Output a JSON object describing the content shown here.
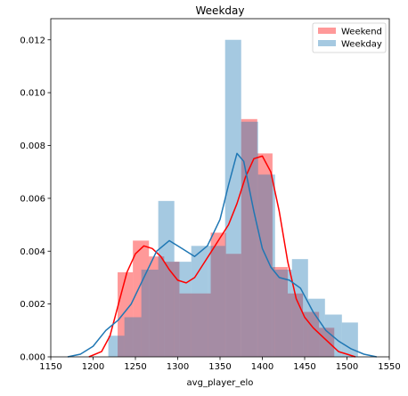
{
  "chart_data": {
    "type": "histogram-kde",
    "title": "Weekday",
    "xlabel": "avg_player_elo",
    "ylabel": "",
    "xlim": [
      1150,
      1550
    ],
    "ylim": [
      0,
      0.0128
    ],
    "xticks": [
      1150,
      1200,
      1250,
      1300,
      1350,
      1400,
      1450,
      1500,
      1550
    ],
    "yticks": [
      0.0,
      0.002,
      0.004,
      0.006,
      0.008,
      0.01,
      0.012
    ],
    "ytick_labels": [
      "0.000",
      "0.002",
      "0.004",
      "0.006",
      "0.008",
      "0.010",
      "0.012"
    ],
    "grid": false,
    "legend_position": "top-right",
    "series": [
      {
        "name": "Weekend",
        "color": "#ff0000",
        "hist_alpha": 0.4,
        "bins": [
          [
            1229,
            1247,
            0.0032
          ],
          [
            1247,
            1266,
            0.0044
          ],
          [
            1266,
            1284,
            0.0038
          ],
          [
            1284,
            1302,
            0.0036
          ],
          [
            1302,
            1320,
            0.0024
          ],
          [
            1320,
            1339,
            0.0024
          ],
          [
            1339,
            1357,
            0.0047
          ],
          [
            1357,
            1375,
            0.0039
          ],
          [
            1375,
            1394,
            0.009
          ],
          [
            1394,
            1412,
            0.0077
          ],
          [
            1412,
            1430,
            0.0034
          ],
          [
            1430,
            1448,
            0.0024
          ],
          [
            1448,
            1467,
            0.0017
          ],
          [
            1467,
            1485,
            0.0011
          ]
        ],
        "kde": [
          [
            1195,
            0.0
          ],
          [
            1210,
            0.0002
          ],
          [
            1220,
            0.0008
          ],
          [
            1230,
            0.002
          ],
          [
            1240,
            0.0032
          ],
          [
            1250,
            0.0039
          ],
          [
            1260,
            0.0042
          ],
          [
            1270,
            0.0041
          ],
          [
            1280,
            0.0038
          ],
          [
            1290,
            0.0033
          ],
          [
            1300,
            0.0029
          ],
          [
            1310,
            0.0028
          ],
          [
            1320,
            0.003
          ],
          [
            1330,
            0.0035
          ],
          [
            1340,
            0.004
          ],
          [
            1350,
            0.0045
          ],
          [
            1360,
            0.005
          ],
          [
            1370,
            0.0058
          ],
          [
            1380,
            0.0068
          ],
          [
            1390,
            0.0075
          ],
          [
            1400,
            0.0076
          ],
          [
            1410,
            0.007
          ],
          [
            1420,
            0.0055
          ],
          [
            1430,
            0.0036
          ],
          [
            1440,
            0.0022
          ],
          [
            1450,
            0.0015
          ],
          [
            1460,
            0.0011
          ],
          [
            1470,
            0.0008
          ],
          [
            1480,
            0.0005
          ],
          [
            1490,
            0.0002
          ],
          [
            1500,
            0.0001
          ],
          [
            1510,
            0.0
          ]
        ]
      },
      {
        "name": "Weekday",
        "color": "#1f77b4",
        "hist_alpha": 0.4,
        "bins": [
          [
            1218,
            1237,
            0.0008
          ],
          [
            1237,
            1257,
            0.0015
          ],
          [
            1257,
            1277,
            0.0033
          ],
          [
            1277,
            1296,
            0.0059
          ],
          [
            1296,
            1316,
            0.0036
          ],
          [
            1316,
            1336,
            0.0042
          ],
          [
            1336,
            1356,
            0.0042
          ],
          [
            1356,
            1375,
            0.012
          ],
          [
            1375,
            1395,
            0.0089
          ],
          [
            1395,
            1415,
            0.0069
          ],
          [
            1415,
            1435,
            0.0033
          ],
          [
            1435,
            1454,
            0.0037
          ],
          [
            1454,
            1474,
            0.0022
          ],
          [
            1474,
            1494,
            0.0016
          ],
          [
            1494,
            1513,
            0.0013
          ]
        ],
        "kde": [
          [
            1170,
            0.0
          ],
          [
            1185,
            0.0001
          ],
          [
            1200,
            0.0004
          ],
          [
            1215,
            0.001
          ],
          [
            1230,
            0.0014
          ],
          [
            1245,
            0.002
          ],
          [
            1260,
            0.003
          ],
          [
            1275,
            0.004
          ],
          [
            1290,
            0.0044
          ],
          [
            1305,
            0.0041
          ],
          [
            1320,
            0.0038
          ],
          [
            1335,
            0.0042
          ],
          [
            1350,
            0.0052
          ],
          [
            1360,
            0.0065
          ],
          [
            1370,
            0.0077
          ],
          [
            1378,
            0.0074
          ],
          [
            1390,
            0.0055
          ],
          [
            1400,
            0.0041
          ],
          [
            1410,
            0.0034
          ],
          [
            1420,
            0.003
          ],
          [
            1432,
            0.0029
          ],
          [
            1445,
            0.0026
          ],
          [
            1460,
            0.0017
          ],
          [
            1475,
            0.001
          ],
          [
            1490,
            0.0006
          ],
          [
            1505,
            0.0003
          ],
          [
            1520,
            0.0001
          ],
          [
            1535,
            0.0
          ]
        ]
      }
    ]
  }
}
